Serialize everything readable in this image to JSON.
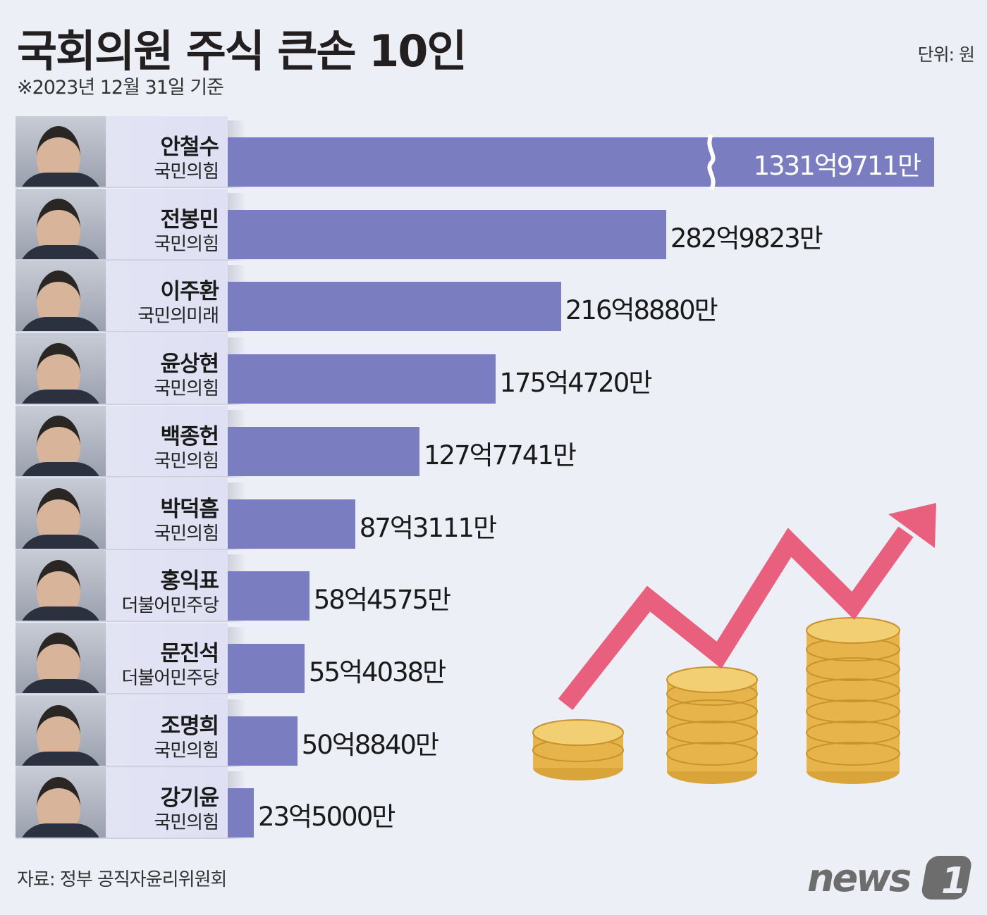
{
  "header": {
    "title": "국회의원 주식 큰손 10인",
    "subtitle": "※2023년 12월 31일 기준",
    "unit": "단위: 원"
  },
  "footer": {
    "source": "자료: 정부 공직자윤리위원회",
    "logo_text": "news1"
  },
  "colors": {
    "bar": "#7b7dc1",
    "background": "#eceff6",
    "arrow": "#e8607e",
    "coin": "#e8b850"
  },
  "chart_data": {
    "type": "bar",
    "orientation": "horizontal",
    "unit": "억원",
    "axis_break_on_first_bar": true,
    "categories": [
      "안철수",
      "전봉민",
      "이주환",
      "윤상현",
      "백종헌",
      "박덕흠",
      "홍익표",
      "문진석",
      "조명희",
      "강기윤"
    ],
    "parties": [
      "국민의힘",
      "국민의힘",
      "국민의미래",
      "국민의힘",
      "국민의힘",
      "국민의힘",
      "더불어민주당",
      "더불어민주당",
      "국민의힘",
      "국민의힘"
    ],
    "values": [
      1331.9711,
      282.9823,
      216.888,
      175.472,
      127.7741,
      87.3111,
      58.4575,
      55.4038,
      50.884,
      23.5
    ],
    "labels": [
      "1331억9711만",
      "282억9823만",
      "216억8880만",
      "175억4720만",
      "127억7741만",
      "87억3111만",
      "58억4575만",
      "55억4038만",
      "50억8840만",
      "23억5000만"
    ]
  }
}
